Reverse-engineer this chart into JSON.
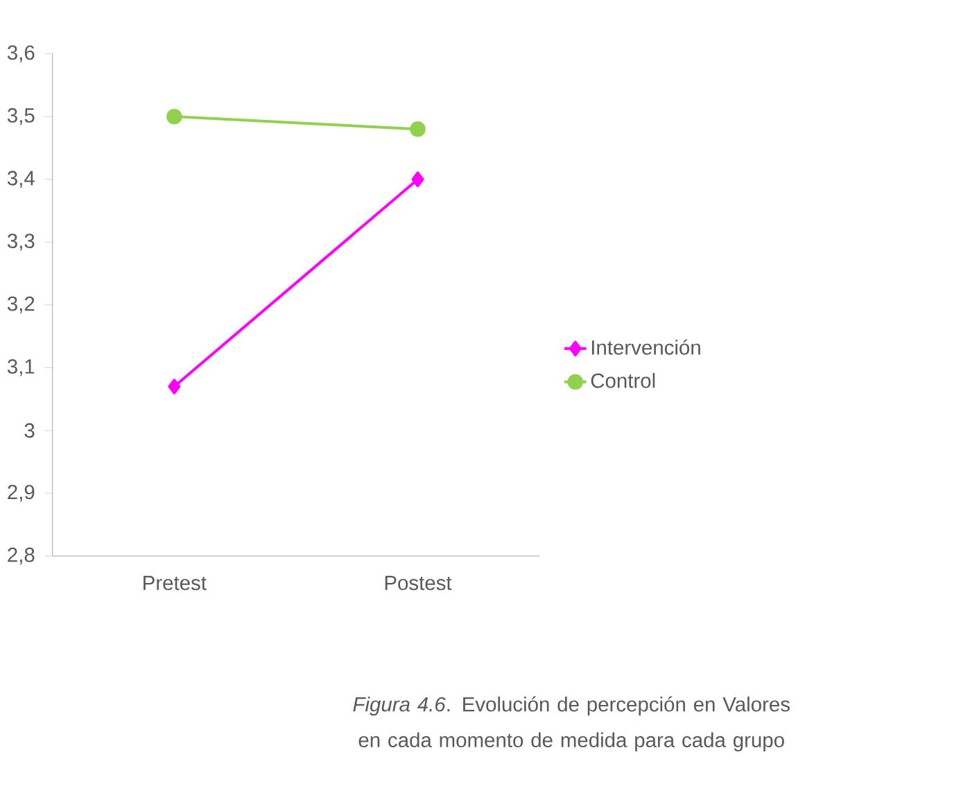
{
  "chart_data": {
    "type": "line",
    "categories": [
      "Pretest",
      "Postest"
    ],
    "series": [
      {
        "name": "Intervención",
        "color": "#ff00ff",
        "values": [
          3.07,
          3.4
        ],
        "marker": "diamond"
      },
      {
        "name": "Control",
        "color": "#92d050",
        "values": [
          3.5,
          3.48
        ],
        "marker": "circle"
      }
    ],
    "ylim": [
      2.8,
      3.6
    ],
    "yticks": [
      {
        "value": 2.8,
        "label": "2,8"
      },
      {
        "value": 2.9,
        "label": "2,9"
      },
      3,
      {
        "value": 3.1,
        "label": "3,1"
      },
      {
        "value": 3.2,
        "label": "3,2"
      },
      {
        "value": 3.3,
        "label": "3,3"
      },
      {
        "value": 3.4,
        "label": "3,4"
      },
      {
        "value": 3.5,
        "label": "3,5"
      },
      {
        "value": 3.6,
        "label": "3,6"
      }
    ],
    "grid": false,
    "legend": "right",
    "line_style": "solid",
    "annotations": [
      "*Figura 4.6*. Evolución de percepción en Valores en cada momento de medida para cada grupo"
    ]
  }
}
